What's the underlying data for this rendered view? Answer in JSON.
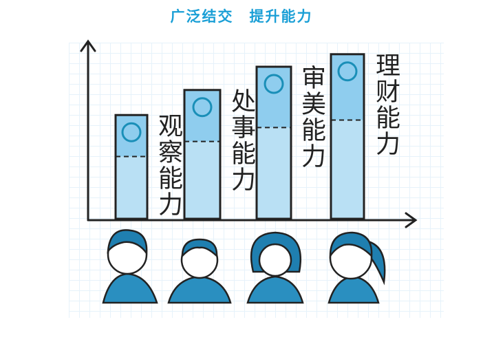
{
  "title": "广泛结交　提升能力",
  "colors": {
    "accent": "#1a9fd6",
    "bar_top": "#8fcdee",
    "bar_bottom": "#b9e0f4"
  },
  "bars": [
    {
      "label": "观察能力",
      "icon": "eraser-icon",
      "level": 0.58
    },
    {
      "label": "处事能力",
      "icon": "handshake-icon",
      "level": 0.72
    },
    {
      "label": "审美能力",
      "icon": "bow-tie-icon",
      "level": 0.85
    },
    {
      "label": "理财能力",
      "icon": "magnifier-icon",
      "level": 0.92
    }
  ]
}
